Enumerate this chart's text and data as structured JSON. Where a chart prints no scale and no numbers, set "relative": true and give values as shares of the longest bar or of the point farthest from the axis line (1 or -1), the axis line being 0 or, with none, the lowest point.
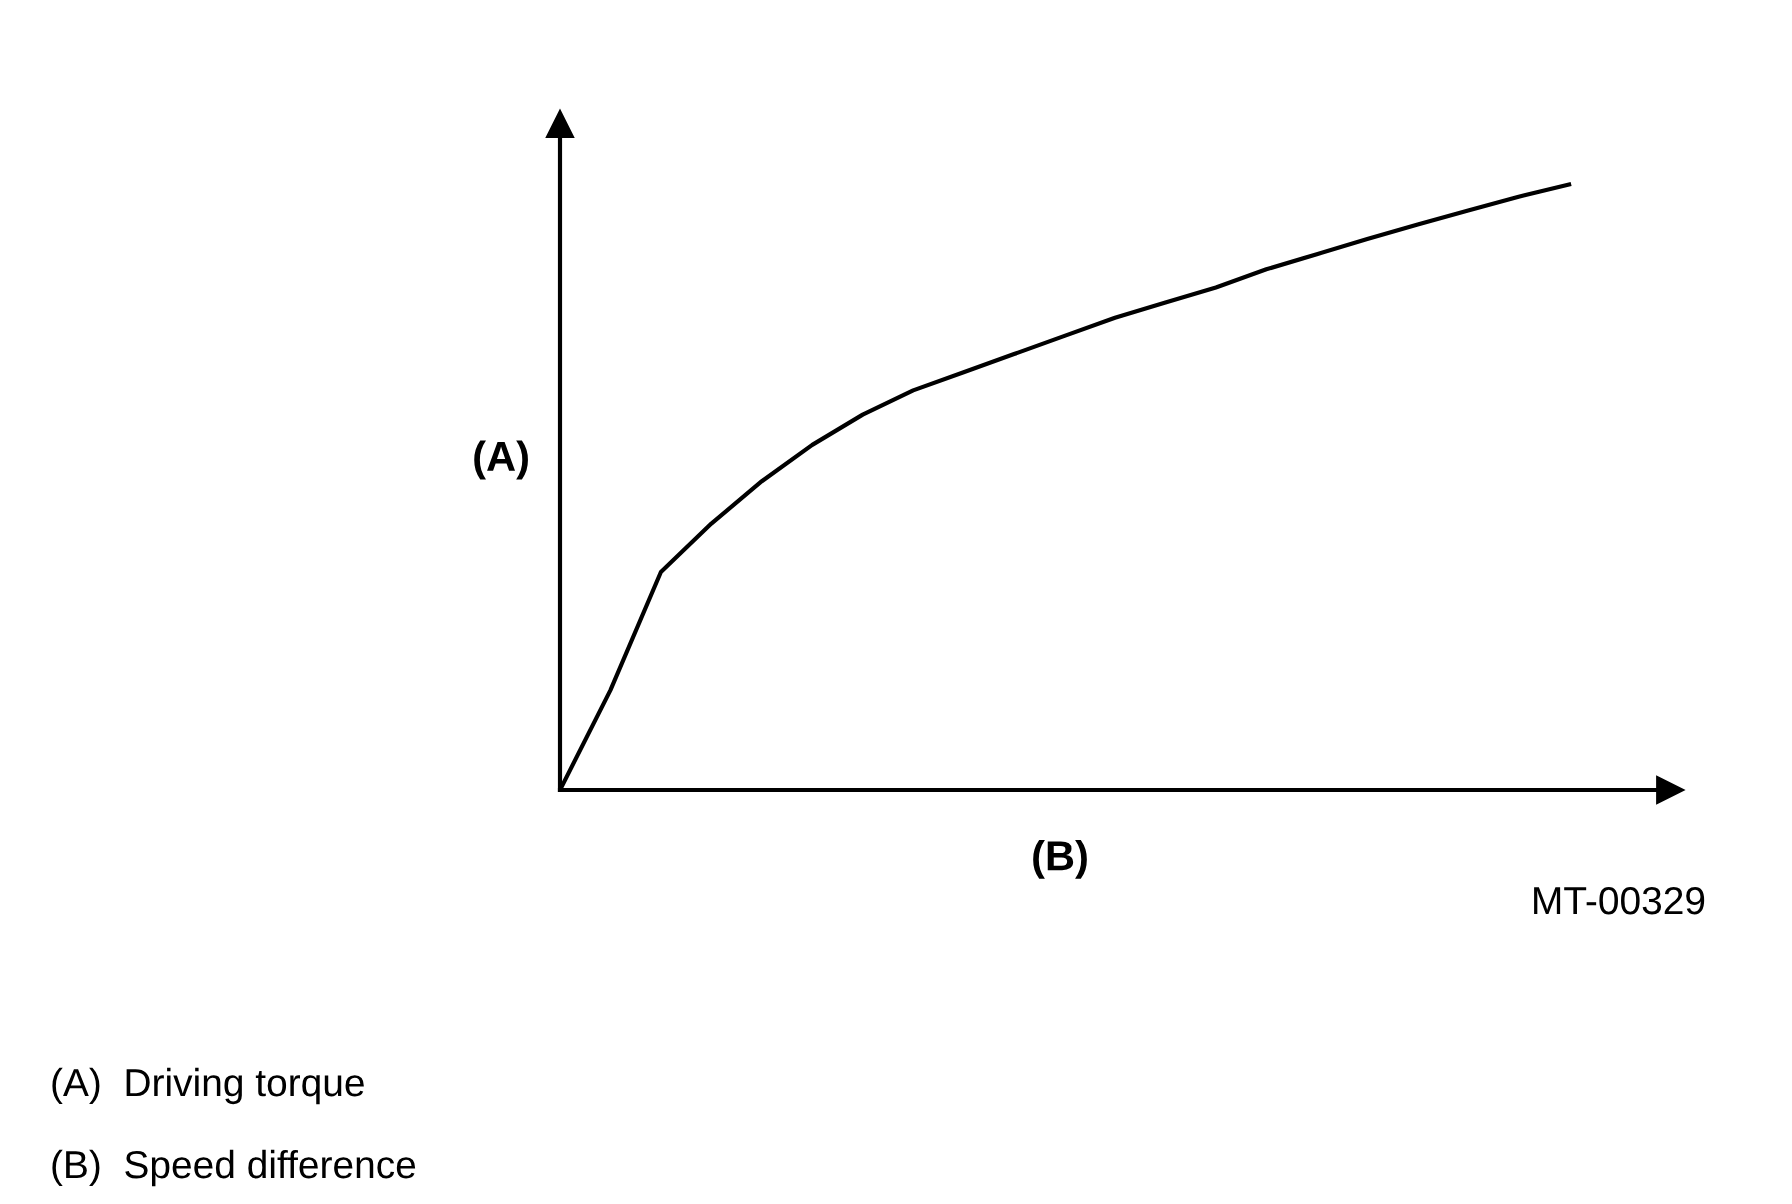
{
  "chart_data": {
    "type": "line",
    "relative": true,
    "xlabel": "(B)",
    "ylabel": "(A)",
    "categories": [
      null,
      null,
      null,
      null,
      null,
      null,
      null,
      null,
      null,
      null,
      null,
      null,
      null,
      null,
      null,
      null,
      null,
      null,
      null,
      null,
      null,
      null,
      null
    ],
    "series": [
      {
        "color": "#000000",
        "values": [
          0,
          0.165,
          0.36,
          0.44,
          0.51,
          0.57,
          0.62,
          0.66,
          0.69,
          0.72,
          0.75,
          0.78,
          0.805,
          0.83,
          0.86,
          0.885,
          0.91,
          0.934,
          0.957,
          0.98,
          1,
          null,
          null
        ]
      }
    ],
    "annotations": [
      "MT-00329",
      "(A)  Driving torque",
      "(B)  Speed difference"
    ],
    "legend": false,
    "marker": "none",
    "line_style": "solid"
  }
}
